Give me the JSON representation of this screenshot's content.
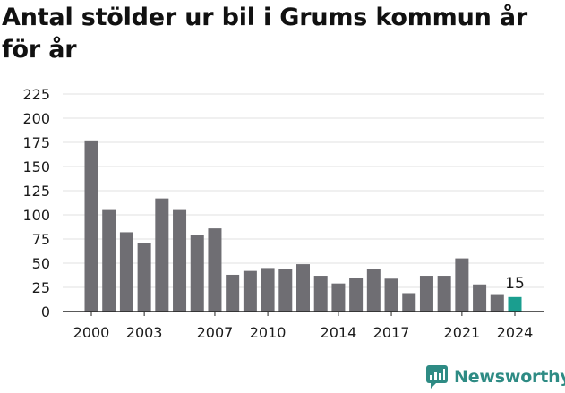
{
  "colors": {
    "bar": "#6f6e73",
    "highlight": "#1a9e8f",
    "grid": "#e0e0e0",
    "axis": "#222222",
    "text": "#1a1a1a",
    "brand": "#2e8b84"
  },
  "branding": {
    "logo_text": "Newsworthy",
    "logo_icon": "newsworthy-chart-icon"
  },
  "chart_data": {
    "type": "bar",
    "title": "Antal stölder ur bil i Grums kommun år för år",
    "xlabel": "",
    "ylabel": "",
    "ylim": [
      0,
      225
    ],
    "yticks": [
      0,
      25,
      50,
      75,
      100,
      125,
      150,
      175,
      200,
      225
    ],
    "grid": true,
    "categories": [
      "2000",
      "2001",
      "2002",
      "2003",
      "2004",
      "2005",
      "2006",
      "2007",
      "2008",
      "2009",
      "2010",
      "2011",
      "2012",
      "2013",
      "2014",
      "2015",
      "2016",
      "2017",
      "2018",
      "2019",
      "2020",
      "2021",
      "2022",
      "2023",
      "2024"
    ],
    "xtick_labels": [
      "2000",
      "2003",
      "2007",
      "2010",
      "2014",
      "2017",
      "2021",
      "2024"
    ],
    "values": [
      177,
      105,
      82,
      71,
      117,
      105,
      79,
      86,
      38,
      42,
      45,
      44,
      49,
      37,
      29,
      35,
      44,
      34,
      19,
      37,
      37,
      55,
      28,
      18,
      15
    ],
    "highlight": {
      "category": "2024",
      "value": 15,
      "label": "15"
    }
  }
}
